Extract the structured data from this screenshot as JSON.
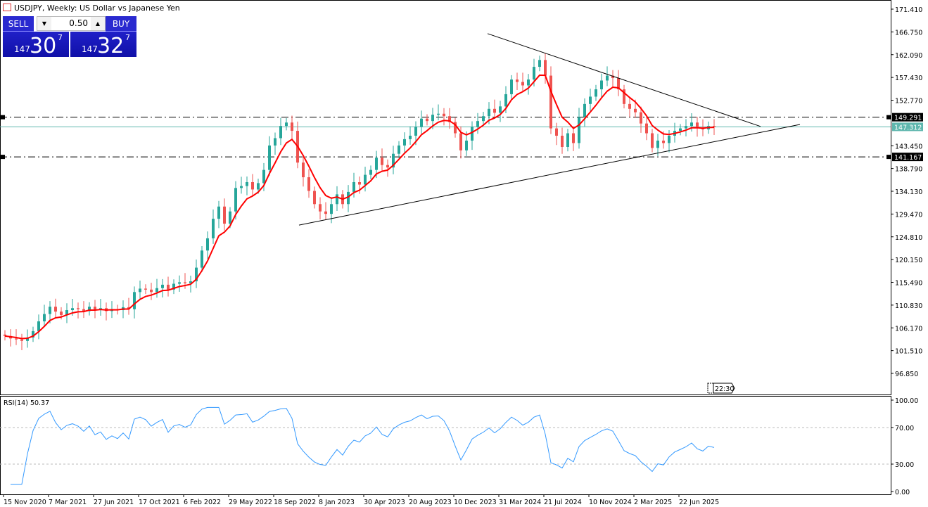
{
  "header": {
    "title": "USDJPY, Weekly:  US Dollar vs Japanese Yen",
    "icons": [
      "list-icon",
      "chart-icon"
    ]
  },
  "trade_panel": {
    "sell_label": "SELL",
    "buy_label": "BUY",
    "lot": "0.50",
    "sell_price": {
      "big": "147",
      "main": "30",
      "sup": "7"
    },
    "buy_price": {
      "big": "147",
      "main": "32",
      "sup": "7"
    }
  },
  "colors": {
    "up": "#26a69a",
    "down": "#ef5350",
    "ma": "#ff0000",
    "rsi": "#3399ff",
    "bid_line": "#5fb7ae"
  },
  "chart_data": {
    "type": "candlestick",
    "symbol": "USDJPY",
    "timeframe": "Weekly",
    "ylim": [
      96.85,
      171.41
    ],
    "y_ticks": [
      "171.410",
      "166.750",
      "162.090",
      "157.430",
      "152.770",
      "143.450",
      "138.790",
      "134.130",
      "129.470",
      "124.810",
      "120.150",
      "115.490",
      "110.830",
      "106.170",
      "101.510",
      "96.850"
    ],
    "x_ticks": [
      "15 Nov 2020",
      "7 Mar 2021",
      "27 Jun 2021",
      "17 Oct 2021",
      "6 Feb 2022",
      "29 May 2022",
      "18 Sep 2022",
      "8 Jan 2023",
      "30 Apr 2023",
      "20 Aug 2023",
      "10 Dec 2023",
      "31 Mar 2024",
      "21 Jul 2024",
      "10 Nov 2024",
      "2 Mar 2025",
      "22 Jun 2025"
    ],
    "closes_biweekly": [
      104.5,
      104.0,
      103.8,
      103.5,
      104.2,
      105.5,
      107.5,
      109.0,
      110.5,
      109.5,
      108.8,
      109.8,
      110.2,
      110.0,
      109.6,
      110.5,
      109.8,
      110.2,
      109.6,
      110.0,
      109.8,
      110.4,
      110.0,
      113.5,
      114.2,
      114.0,
      113.5,
      114.3,
      115.0,
      114.0,
      115.2,
      115.5,
      115.3,
      115.7,
      118.5,
      122.0,
      124.5,
      128.5,
      131.0,
      127.5,
      130.0,
      134.8,
      135.2,
      136.0,
      134.5,
      135.8,
      138.5,
      143.5,
      145.0,
      147.5,
      148.2,
      146.5,
      140.0,
      137.0,
      134.2,
      131.5,
      130.0,
      129.5,
      131.5,
      133.5,
      131.5,
      134.0,
      136.0,
      135.5,
      137.5,
      138.5,
      141.0,
      139.5,
      139.0,
      141.8,
      143.5,
      144.8,
      145.5,
      147.3,
      149.0,
      148.5,
      149.8,
      150.0,
      149.5,
      148.3,
      146.0,
      142.5,
      144.5,
      147.3,
      148.5,
      149.5,
      151.0,
      150.2,
      151.5,
      154.0,
      157.0,
      156.5,
      155.8,
      157.0,
      159.6,
      161.0,
      157.8,
      147.0,
      145.5,
      143.2,
      146.0,
      144.0,
      149.3,
      152.0,
      153.5,
      155.0,
      156.8,
      157.8,
      157.3,
      155.0,
      152.0,
      151.0,
      150.3,
      148.0,
      146.0,
      143.0,
      144.5,
      144.0,
      145.5,
      146.5,
      147.0,
      147.5,
      148.2,
      147.2,
      146.8,
      147.5,
      147.3
    ],
    "levels": [
      {
        "price": 149.291,
        "label": "149.291",
        "style": "dash-dot"
      },
      {
        "price": 141.167,
        "label": "141.167",
        "style": "dash-dot"
      }
    ],
    "current_price": {
      "price": 147.312,
      "label": "147.312"
    },
    "trendlines": [
      {
        "from": {
          "week": 172,
          "price": 166.4
        },
        "to": {
          "week": 269,
          "price": 147.4
        }
      },
      {
        "from": {
          "week": 105,
          "price": 127.2
        },
        "to": {
          "week": 283,
          "price": 147.8
        }
      }
    ],
    "time_marker": "22:30",
    "rsi": {
      "label": "RSI(14) 50.37",
      "ticks": [
        "100.00",
        "70.00",
        "30.00",
        "0.00"
      ],
      "levels": [
        70,
        30
      ]
    }
  }
}
